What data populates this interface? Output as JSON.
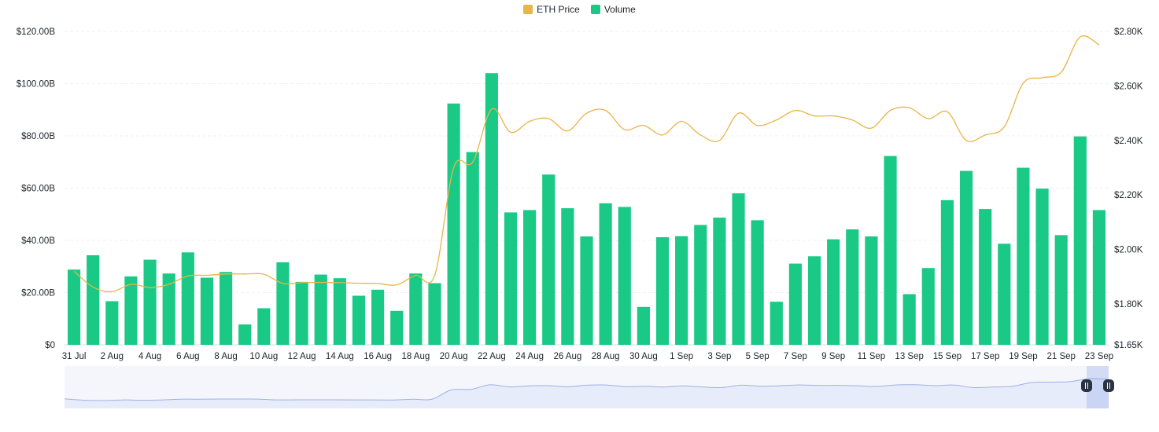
{
  "legend": {
    "price_label": "ETH Price",
    "volume_label": "Volume"
  },
  "colors": {
    "price": "#e8b54a",
    "volume": "#19c985",
    "grid": "#eef0f3",
    "navigator_fill": "#e6ecfa",
    "navigator_line": "#9fb1e6",
    "handle": "#2b3241"
  },
  "chart_data": {
    "type": "bar",
    "categories": [
      "31 Jul",
      "1 Aug",
      "2 Aug",
      "3 Aug",
      "4 Aug",
      "5 Aug",
      "6 Aug",
      "7 Aug",
      "8 Aug",
      "9 Aug",
      "10 Aug",
      "11 Aug",
      "12 Aug",
      "13 Aug",
      "14 Aug",
      "15 Aug",
      "16 Aug",
      "17 Aug",
      "18 Aug",
      "19 Aug",
      "20 Aug",
      "21 Aug",
      "22 Aug",
      "23 Aug",
      "24 Aug",
      "25 Aug",
      "26 Aug",
      "27 Aug",
      "28 Aug",
      "29 Aug",
      "30 Aug",
      "31 Aug",
      "1 Sep",
      "2 Sep",
      "3 Sep",
      "4 Sep",
      "5 Sep",
      "6 Sep",
      "7 Sep",
      "8 Sep",
      "9 Sep",
      "10 Sep",
      "11 Sep",
      "12 Sep",
      "13 Sep",
      "14 Sep",
      "15 Sep",
      "16 Sep",
      "17 Sep",
      "18 Sep",
      "19 Sep",
      "20 Sep",
      "21 Sep",
      "22 Sep",
      "23 Sep"
    ],
    "x_tick_labels": [
      "31 Jul",
      "2 Aug",
      "4 Aug",
      "6 Aug",
      "8 Aug",
      "10 Aug",
      "12 Aug",
      "14 Aug",
      "16 Aug",
      "18 Aug",
      "20 Aug",
      "22 Aug",
      "24 Aug",
      "26 Aug",
      "28 Aug",
      "30 Aug",
      "1 Sep",
      "3 Sep",
      "5 Sep",
      "7 Sep",
      "9 Sep",
      "11 Sep",
      "13 Sep",
      "15 Sep",
      "17 Sep",
      "19 Sep",
      "21 Sep",
      "23 Sep"
    ],
    "series": [
      {
        "name": "Volume",
        "axis": "left",
        "type": "bar",
        "values": [
          28.8,
          34.3,
          16.7,
          26.2,
          32.6,
          27.3,
          35.4,
          25.7,
          27.9,
          7.8,
          14.0,
          31.6,
          24.1,
          26.9,
          25.5,
          18.8,
          21.1,
          13.0,
          27.3,
          23.6,
          92.4,
          73.8,
          104.0,
          50.7,
          51.6,
          65.2,
          52.3,
          41.5,
          54.2,
          52.8,
          14.5,
          41.2,
          41.6,
          45.9,
          48.7,
          58.0,
          47.7,
          16.5,
          31.1,
          33.9,
          40.4,
          44.2,
          41.5,
          72.3,
          19.4,
          29.4,
          55.4,
          66.6,
          52.0,
          38.7,
          67.8,
          59.8,
          42.0,
          79.8,
          51.6
        ]
      },
      {
        "name": "ETH Price",
        "axis": "right",
        "type": "line",
        "values": [
          1920,
          1862,
          1845,
          1872,
          1860,
          1872,
          1903,
          1905,
          1910,
          1910,
          1909,
          1875,
          1878,
          1879,
          1878,
          1876,
          1875,
          1870,
          1905,
          1905,
          2300,
          2320,
          2515,
          2430,
          2470,
          2480,
          2435,
          2500,
          2510,
          2440,
          2455,
          2420,
          2470,
          2420,
          2400,
          2500,
          2455,
          2475,
          2510,
          2490,
          2490,
          2475,
          2445,
          2510,
          2520,
          2480,
          2505,
          2400,
          2420,
          2450,
          2610,
          2630,
          2650,
          2780,
          2750
        ]
      }
    ],
    "y_left": {
      "min": 0,
      "max": 120,
      "ticks": [
        "$0",
        "$20.00B",
        "$40.00B",
        "$60.00B",
        "$80.00B",
        "$100.00B",
        "$120.00B"
      ]
    },
    "y_right": {
      "min": 1650,
      "max": 2800,
      "ticks": [
        "$1.65K",
        "$1.80K",
        "$2.00K",
        "$2.20K",
        "$2.40K",
        "$2.60K",
        "$2.80K"
      ],
      "tick_values": [
        1650,
        1800,
        2000,
        2200,
        2400,
        2600,
        2800
      ]
    },
    "grid": true,
    "legend_position": "top-center"
  }
}
